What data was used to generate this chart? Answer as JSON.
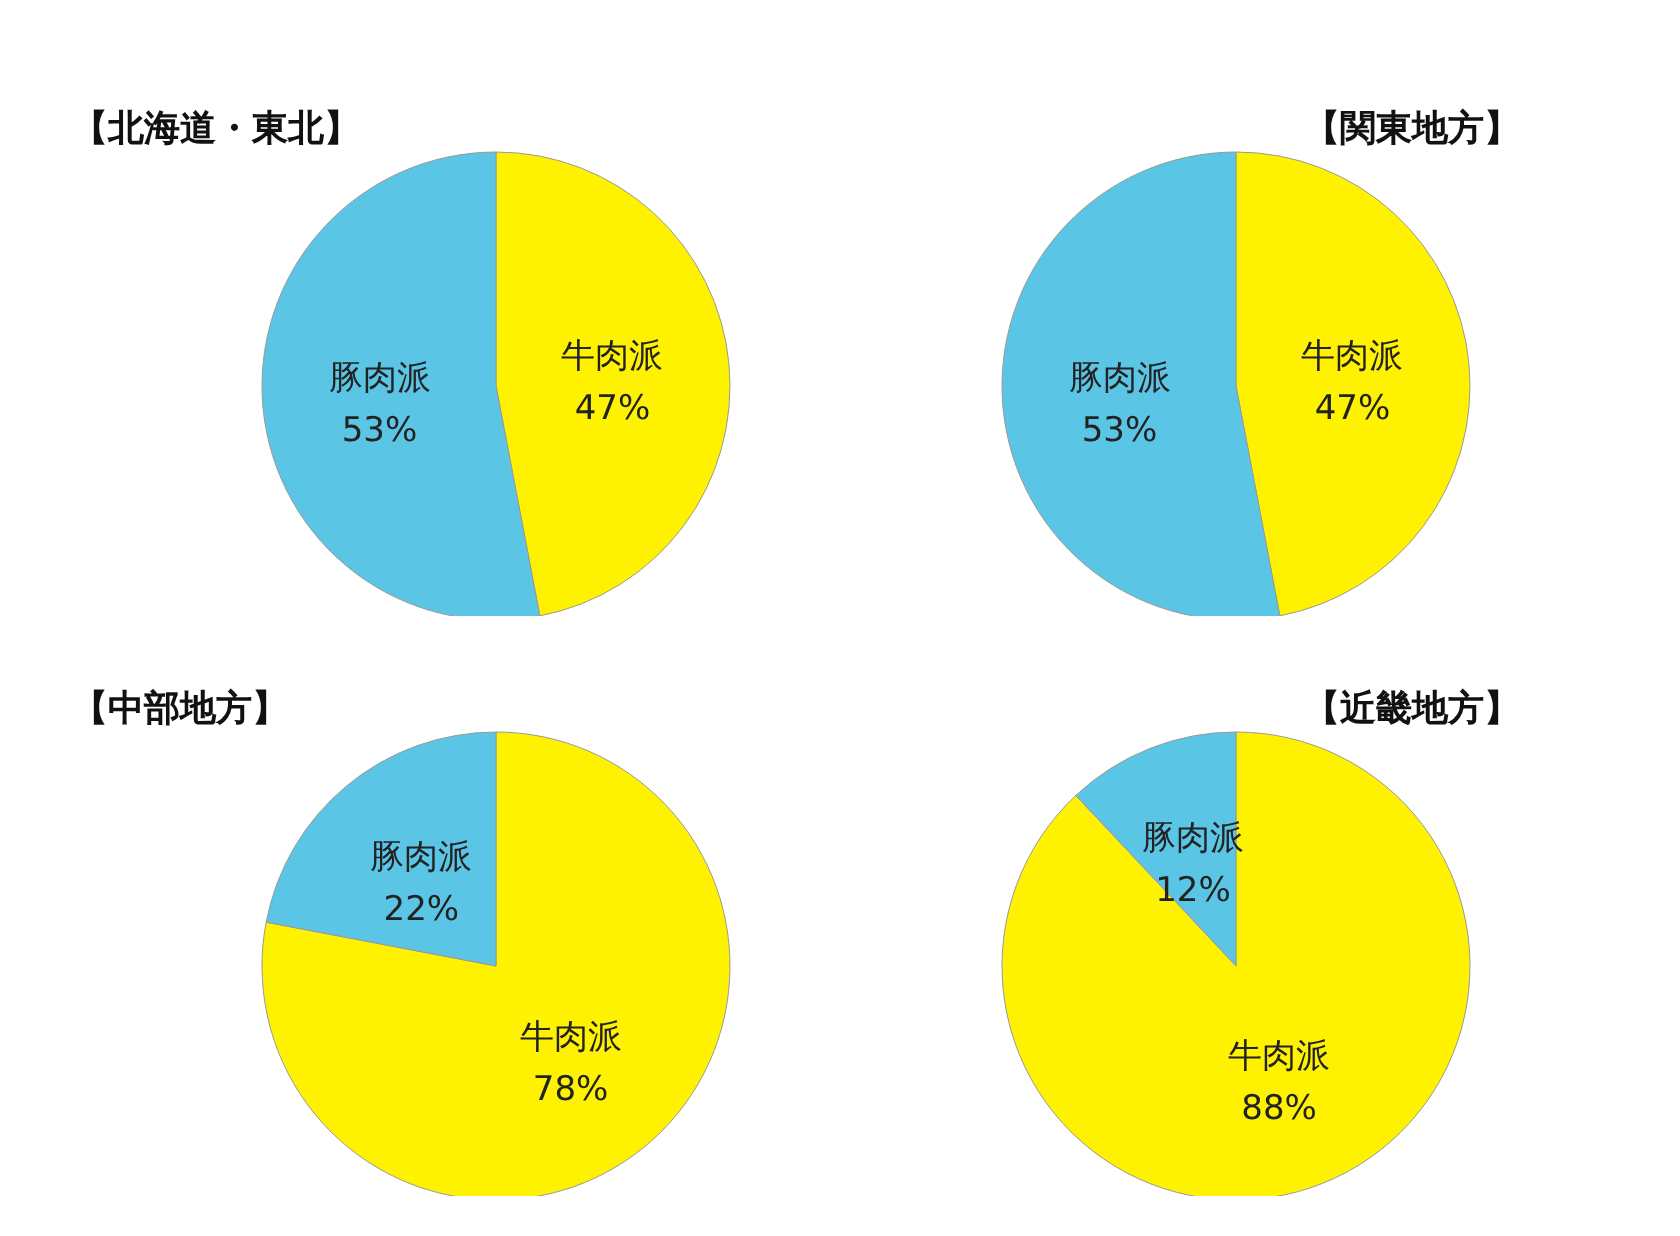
{
  "chart_data": [
    {
      "type": "pie",
      "title": "【北海道・東北】",
      "categories": [
        "牛肉派",
        "豚肉派"
      ],
      "values": [
        47,
        53
      ],
      "colors": [
        "#fff200",
        "#5bc5e6"
      ],
      "value_labels": [
        "47%",
        "53%"
      ],
      "legend": false
    },
    {
      "type": "pie",
      "title": "【関東地方】",
      "categories": [
        "牛肉派",
        "豚肉派"
      ],
      "values": [
        47,
        53
      ],
      "colors": [
        "#fff200",
        "#5bc5e6"
      ],
      "value_labels": [
        "47%",
        "53%"
      ],
      "legend": false
    },
    {
      "type": "pie",
      "title": "【中部地方】",
      "categories": [
        "牛肉派",
        "豚肉派"
      ],
      "values": [
        78,
        22
      ],
      "colors": [
        "#fff200",
        "#5bc5e6"
      ],
      "value_labels": [
        "78%",
        "22%"
      ],
      "legend": false
    },
    {
      "type": "pie",
      "title": "【近畿地方】",
      "categories": [
        "牛肉派",
        "豚肉派"
      ],
      "values": [
        88,
        12
      ],
      "colors": [
        "#fff200",
        "#5bc5e6"
      ],
      "value_labels": [
        "88%",
        "12%"
      ],
      "legend": false
    }
  ]
}
